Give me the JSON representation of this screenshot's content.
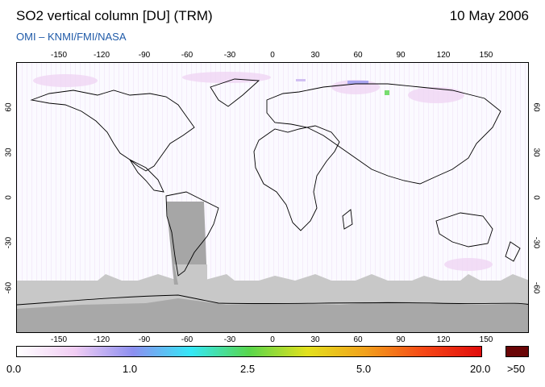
{
  "header": {
    "title": "SO2 vertical column [DU] (TRM)",
    "date": "10 May 2006",
    "credit": "OMI  –  KNMI/FMI/NASA"
  },
  "map": {
    "projection": "equirectangular",
    "lon_range": [
      -180,
      180
    ],
    "lat_range": [
      -90,
      90
    ],
    "lon_ticks": [
      "-150",
      "-120",
      "-90",
      "-60",
      "-30",
      "0",
      "30",
      "60",
      "90",
      "120",
      "150"
    ],
    "lat_ticks": [
      "60",
      "30",
      "0",
      "-30",
      "-60"
    ],
    "colors": {
      "no_data": "#c8c8c8",
      "saa_mask": "#a6a6a6",
      "coastline": "#000000",
      "background": "#fbfaff"
    }
  },
  "colorbar": {
    "labels": [
      "0.0",
      "1.0",
      "2.5",
      "5.0",
      "20.0",
      ">50"
    ],
    "colors": [
      "#ffffff",
      "#f1cdf3",
      "#8d8ff0",
      "#35e8f7",
      "#58d64c",
      "#e3e11d",
      "#f2a11c",
      "#f64816",
      "#e10c0c",
      "#6a0506"
    ]
  }
}
